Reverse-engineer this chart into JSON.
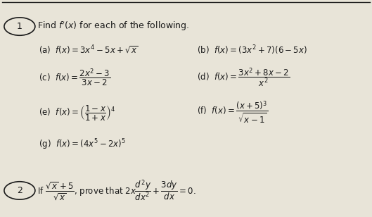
{
  "bg_color": "#e8e4d8",
  "text_color": "#1a1a1a",
  "title": "Find $f'(x)$ for each of the following.",
  "q1_label": "1",
  "q2_label": "2",
  "figsize": [
    5.29,
    3.08
  ],
  "dpi": 100
}
